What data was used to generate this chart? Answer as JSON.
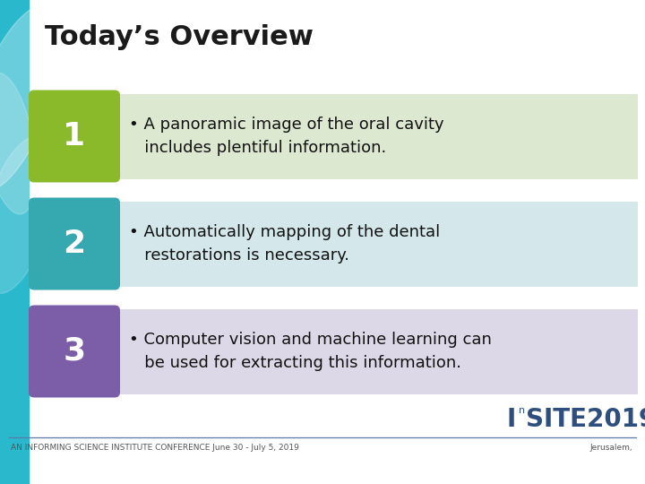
{
  "title": "Today’s Overview",
  "title_fontsize": 22,
  "title_color": "#1a1a1a",
  "bg_color": "#ffffff",
  "left_bar_color": "#29b8cc",
  "items": [
    {
      "number": "1",
      "box_color": "#8aba2a",
      "bg_color": "#dde8d0",
      "text_line1": "• A panoramic image of the oral cavity",
      "text_line2": "   includes plentiful information."
    },
    {
      "number": "2",
      "box_color": "#36a8b0",
      "bg_color": "#d4e8ec",
      "text_line1": "• Automatically mapping of the dental",
      "text_line2": "   restorations is necessary."
    },
    {
      "number": "3",
      "box_color": "#7b5ea7",
      "bg_color": "#ddd8e8",
      "text_line1": "• Computer vision and machine learning can",
      "text_line2": "   be used for extracting this information."
    }
  ],
  "footer_left": "AN INFORMING SCIENCE INSTITUTE CONFERENCE June 30 - July 5, 2019",
  "footer_right": "Jerusalem,",
  "footer_color": "#555555",
  "footer_fontsize": 6.5,
  "logo_color_main": "#2e4e7e",
  "separator_color": "#5a7aaa",
  "text_fontsize": 13,
  "number_fontsize": 26
}
